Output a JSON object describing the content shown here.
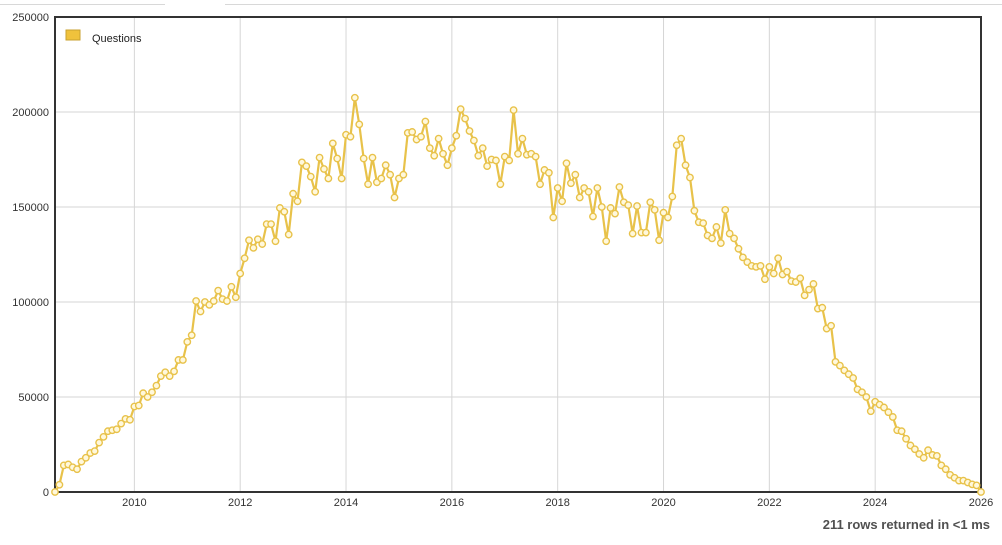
{
  "status": {
    "rows_text": "211 rows returned in <1 ms"
  },
  "chart_data": {
    "type": "line",
    "colors": {
      "series": "#e8c24a",
      "marker_fill": "#fff8dc",
      "frame": "#333333",
      "grid": "#d6d6d6",
      "legend_swatch": "#f0c23c"
    },
    "legend": {
      "placement": "top-left",
      "entries": [
        "Questions"
      ]
    },
    "grid": true,
    "x_range": [
      2008.5,
      2026.0
    ],
    "x_ticks": [
      {
        "value": 2010,
        "label": "2010"
      },
      {
        "value": 2012,
        "label": "2012"
      },
      {
        "value": 2014,
        "label": "2014"
      },
      {
        "value": 2016,
        "label": "2016"
      },
      {
        "value": 2018,
        "label": "2018"
      },
      {
        "value": 2020,
        "label": "2020"
      },
      {
        "value": 2022,
        "label": "2022"
      },
      {
        "value": 2024,
        "label": "2024"
      },
      {
        "value": 2026,
        "label": "2026"
      }
    ],
    "ylim": [
      0,
      250000
    ],
    "y_ticks": [
      {
        "value": 0,
        "label": "0"
      },
      {
        "value": 50000,
        "label": "50000"
      },
      {
        "value": 100000,
        "label": "100000"
      },
      {
        "value": 150000,
        "label": "150000"
      },
      {
        "value": 200000,
        "label": "200000"
      },
      {
        "value": 250000,
        "label": "250000"
      }
    ],
    "series": [
      {
        "name": "Questions",
        "values": [
          0,
          3800,
          14000,
          14500,
          13000,
          12000,
          16000,
          18000,
          20500,
          21500,
          26000,
          29000,
          32000,
          32500,
          33000,
          36000,
          38500,
          38000,
          45000,
          45500,
          52000,
          50000,
          52500,
          56000,
          61000,
          63000,
          61000,
          63500,
          69500,
          69500,
          79000,
          82500,
          100500,
          95000,
          100000,
          98500,
          100500,
          106000,
          101500,
          100500,
          108000,
          102500,
          115000,
          123000,
          132500,
          128500,
          133000,
          130500,
          141000,
          141000,
          132000,
          149500,
          147500,
          135500,
          157000,
          153000,
          173500,
          171500,
          166000,
          158000,
          176000,
          170000,
          165000,
          183500,
          175500,
          165000,
          188000,
          187000,
          207500,
          193500,
          175500,
          162000,
          176000,
          163000,
          165000,
          172000,
          167000,
          155000,
          165000,
          167000,
          189000,
          189500,
          185500,
          187000,
          195000,
          181000,
          177000,
          186000,
          178000,
          172000,
          181000,
          187500,
          201500,
          196500,
          190000,
          185000,
          177000,
          181000,
          171500,
          175000,
          174500,
          162000,
          176500,
          174500,
          201000,
          178000,
          186000,
          177500,
          178000,
          176500,
          162000,
          169500,
          168000,
          144500,
          160000,
          153000,
          173000,
          162500,
          167000,
          155000,
          160000,
          158000,
          145000,
          160000,
          150000,
          132000,
          149500,
          146500,
          160500,
          152500,
          151000,
          136000,
          150500,
          136500,
          136500,
          152500,
          148500,
          132500,
          147000,
          144500,
          155500,
          182500,
          186000,
          172000,
          165500,
          148000,
          142000,
          141500,
          135000,
          133500,
          139500,
          131000,
          148500,
          136000,
          133500,
          128000,
          123500,
          121000,
          119000,
          118500,
          119000,
          112000,
          118500,
          115000,
          123000,
          114500,
          116000,
          111000,
          110500,
          112500,
          103500,
          106500,
          109500,
          96500,
          97000,
          86000,
          87500,
          68500,
          66500,
          64000,
          62000,
          60000,
          54000,
          52500,
          50000,
          42500,
          47500,
          46000,
          44500,
          42000,
          39500,
          32500,
          32000,
          28000,
          24500,
          22500,
          20000,
          18000,
          22000,
          19500,
          19000,
          14000,
          12000,
          9000,
          7500,
          6000,
          6000,
          5000,
          4000,
          3500,
          0
        ]
      }
    ]
  }
}
